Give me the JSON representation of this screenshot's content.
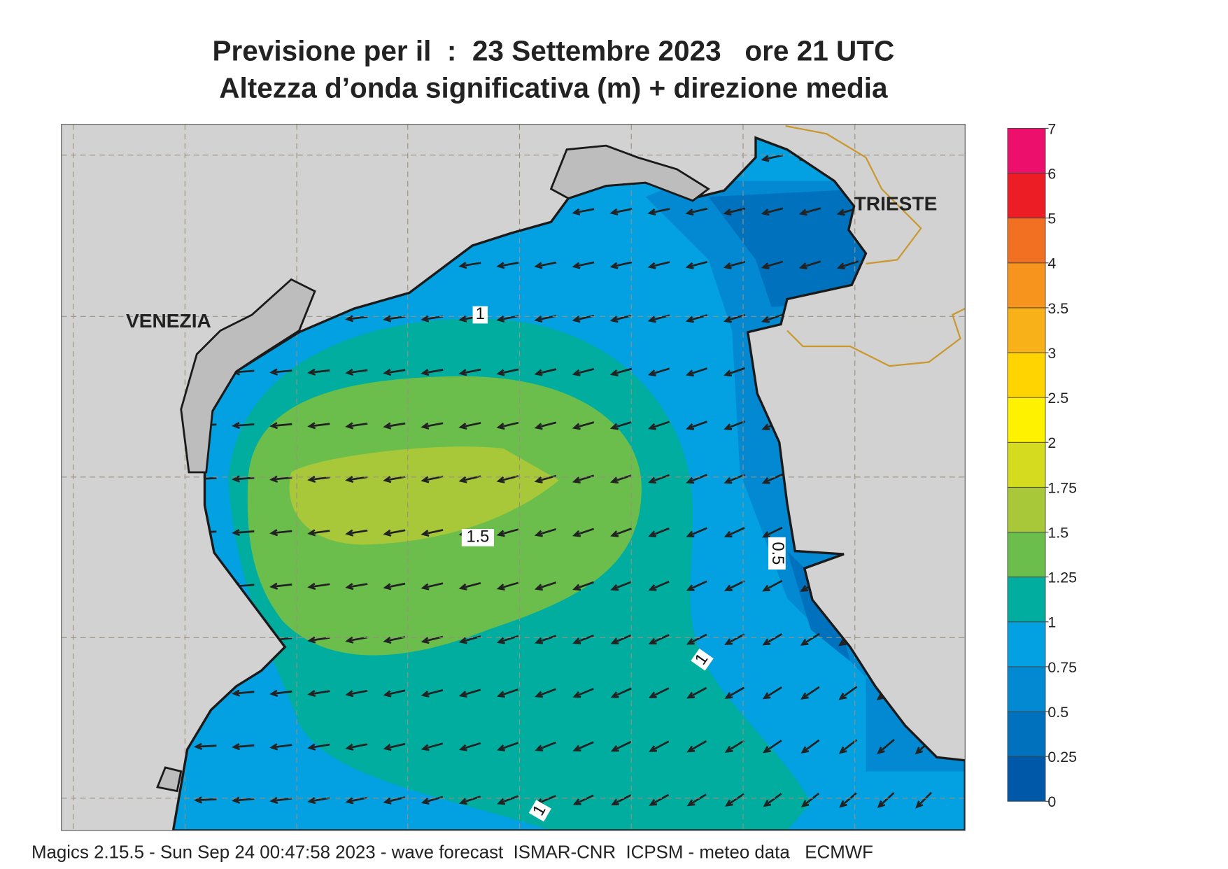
{
  "header": {
    "title_line1": "Previsione per il  :  23 Settembre 2023   ore 21 UTC",
    "title_line2": "Altezza d’onda significativa (m) + direzione media"
  },
  "map": {
    "places": [
      "VENEZIA",
      "TRIESTE"
    ],
    "contour_labels": [
      "1",
      "1.5",
      "0.5",
      "1",
      "1"
    ]
  },
  "colorbar": {
    "ticks": [
      0,
      0.25,
      0.5,
      0.75,
      1,
      1.25,
      1.5,
      1.75,
      2,
      2.5,
      3,
      3.5,
      4,
      5,
      6,
      7
    ],
    "colors": [
      "#0058a8",
      "#0072bd",
      "#0289d2",
      "#03a0e2",
      "#00ad9f",
      "#6bbe4c",
      "#a8c83a",
      "#d5dc20",
      "#fff200",
      "#ffd400",
      "#f8b118",
      "#f7941e",
      "#f27022",
      "#ec1d25",
      "#ec106c"
    ]
  },
  "footer": "Magics 2.15.5 - Sun Sep 24 00:47:58 2023 - wave forecast  ISMAR-CNR  ICPSM - meteo data   ECMWF"
}
